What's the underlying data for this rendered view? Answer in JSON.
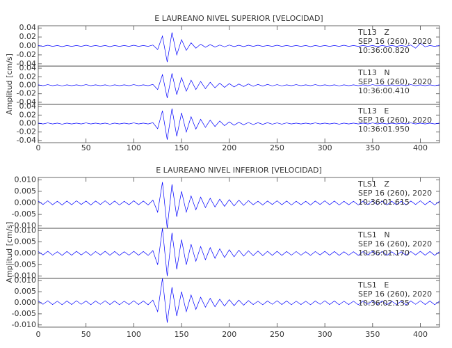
{
  "chart_data": [
    {
      "type": "line",
      "title": "E LAUREANO NIVEL SUPERIOR [VELOCIDAD]",
      "ylabel": "Amplitud [cm/s]",
      "xlim": [
        0,
        420
      ],
      "xticks": [
        0,
        50,
        100,
        150,
        200,
        250,
        300,
        350,
        400
      ],
      "x": [
        0,
        5,
        10,
        15,
        20,
        25,
        30,
        35,
        40,
        45,
        50,
        55,
        60,
        65,
        70,
        75,
        80,
        85,
        90,
        95,
        100,
        105,
        110,
        115,
        120,
        125,
        130,
        135,
        140,
        145,
        150,
        155,
        160,
        165,
        170,
        175,
        180,
        185,
        190,
        195,
        200,
        205,
        210,
        215,
        220,
        225,
        230,
        235,
        240,
        245,
        250,
        255,
        260,
        265,
        270,
        275,
        280,
        285,
        290,
        295,
        300,
        305,
        310,
        315,
        320,
        325,
        330,
        335,
        340,
        345,
        350,
        355,
        360,
        365,
        370,
        375,
        380,
        385,
        390,
        395,
        400,
        405,
        410,
        415,
        420
      ],
      "panels": [
        {
          "station": "TL13   Z",
          "date": "SEP 16 (260), 2020",
          "time": "10:36:00.820",
          "color": "#0000ff",
          "ylim": [
            -0.045,
            0.045
          ],
          "yticks": [
            {
              "value": 0.04,
              "label": "0.04"
            },
            {
              "value": 0.02,
              "label": "0.02"
            },
            {
              "value": 0,
              "label": "0.00"
            },
            {
              "value": -0.02,
              "label": "-0.02"
            },
            {
              "value": -0.04,
              "label": "-0.04"
            }
          ],
          "values": [
            0.001,
            -0.001,
            0.0015,
            -0.001,
            0.001,
            -0.0015,
            0.001,
            -0.001,
            0.001,
            -0.001,
            0.0015,
            -0.001,
            0.001,
            -0.001,
            0.001,
            -0.0015,
            0.001,
            -0.001,
            0.001,
            -0.001,
            0.0015,
            -0.001,
            0.001,
            -0.001,
            0.002,
            -0.008,
            0.022,
            -0.036,
            0.03,
            -0.02,
            0.014,
            -0.01,
            0.007,
            -0.005,
            0.004,
            -0.003,
            0.003,
            -0.0025,
            0.002,
            -0.002,
            0.002,
            -0.0015,
            0.0015,
            -0.0015,
            0.0015,
            -0.001,
            0.0015,
            -0.001,
            0.001,
            -0.001,
            0.0015,
            -0.001,
            0.001,
            -0.001,
            0.001,
            -0.001,
            0.001,
            -0.0015,
            0.001,
            -0.001,
            0.001,
            -0.001,
            0.001,
            -0.001,
            0.0015,
            -0.001,
            0.001,
            -0.001,
            0.001,
            -0.001,
            0.001,
            -0.0015,
            0.001,
            -0.001,
            0.001,
            -0.001,
            0.001,
            -0.001,
            0.002,
            -0.005,
            0.006,
            -0.002,
            0.001,
            -0.001,
            0.001
          ]
        },
        {
          "station": "TL13   N",
          "date": "SEP 16 (260), 2020",
          "time": "10:36:00.410",
          "color": "#0000ff",
          "ylim": [
            -0.045,
            0.045
          ],
          "yticks": [
            {
              "value": 0.04,
              "label": "0.04"
            },
            {
              "value": 0.02,
              "label": "0.02"
            },
            {
              "value": 0,
              "label": "0.00"
            },
            {
              "value": -0.02,
              "label": "-0.02"
            },
            {
              "value": -0.04,
              "label": "-0.04"
            }
          ],
          "values": [
            0.001,
            -0.001,
            0.0015,
            -0.001,
            0.001,
            -0.0015,
            0.001,
            -0.001,
            0.001,
            -0.001,
            0.0015,
            -0.001,
            0.001,
            -0.001,
            0.001,
            -0.0015,
            0.001,
            -0.001,
            0.001,
            -0.001,
            0.0015,
            -0.001,
            0.001,
            -0.001,
            0.002,
            -0.01,
            0.025,
            -0.03,
            0.028,
            -0.022,
            0.018,
            -0.014,
            0.012,
            -0.01,
            0.009,
            -0.008,
            0.007,
            -0.006,
            0.005,
            -0.005,
            0.004,
            -0.004,
            0.003,
            -0.003,
            0.003,
            -0.0025,
            0.002,
            -0.002,
            0.002,
            -0.0015,
            0.0015,
            -0.0015,
            0.001,
            -0.001,
            0.0015,
            -0.001,
            0.001,
            -0.001,
            0.0015,
            -0.001,
            0.001,
            -0.001,
            0.001,
            -0.0015,
            0.001,
            -0.001,
            0.001,
            -0.001,
            0.001,
            -0.001,
            0.0015,
            -0.001,
            0.001,
            -0.001,
            0.001,
            -0.001,
            0.001,
            -0.001,
            0.0015,
            -0.001,
            0.001,
            -0.001,
            0.001,
            -0.001,
            0.001
          ]
        },
        {
          "station": "TL13   E",
          "date": "SEP 16 (260), 2020",
          "time": "10:36:01.950",
          "color": "#0000ff",
          "ylim": [
            -0.045,
            0.045
          ],
          "yticks": [
            {
              "value": 0.04,
              "label": "0.04"
            },
            {
              "value": 0.02,
              "label": "0.02"
            },
            {
              "value": 0,
              "label": "0.00"
            },
            {
              "value": -0.02,
              "label": "-0.02"
            },
            {
              "value": -0.04,
              "label": "-0.04"
            }
          ],
          "values": [
            0.001,
            -0.001,
            0.0015,
            -0.001,
            0.001,
            -0.0015,
            0.001,
            -0.001,
            0.001,
            -0.001,
            0.0015,
            -0.001,
            0.001,
            -0.001,
            0.001,
            -0.0015,
            0.001,
            -0.001,
            0.001,
            -0.001,
            0.0015,
            -0.001,
            0.001,
            -0.001,
            0.002,
            -0.012,
            0.03,
            -0.038,
            0.035,
            -0.03,
            0.025,
            -0.02,
            0.016,
            -0.013,
            0.01,
            -0.009,
            0.008,
            -0.007,
            0.006,
            -0.005,
            0.004,
            -0.004,
            0.003,
            -0.003,
            0.0025,
            -0.0025,
            0.002,
            -0.002,
            0.002,
            -0.0015,
            0.0015,
            -0.0015,
            0.0015,
            -0.001,
            0.001,
            -0.001,
            0.001,
            -0.001,
            0.0015,
            -0.001,
            0.001,
            -0.001,
            0.001,
            -0.0015,
            0.001,
            -0.001,
            0.001,
            -0.001,
            0.001,
            -0.001,
            0.0015,
            -0.001,
            0.001,
            -0.001,
            0.001,
            -0.001,
            0.001,
            -0.001,
            0.0015,
            -0.001,
            0.001,
            -0.001,
            0.001,
            -0.001,
            0.001
          ]
        }
      ]
    },
    {
      "type": "line",
      "title": "E LAUREANO NIVEL INFERIOR [VELOCIDAD]",
      "ylabel": "Amplitud [cm/s]",
      "xlim": [
        0,
        420
      ],
      "xticks": [
        0,
        50,
        100,
        150,
        200,
        250,
        300,
        350,
        400
      ],
      "x": [
        0,
        5,
        10,
        15,
        20,
        25,
        30,
        35,
        40,
        45,
        50,
        55,
        60,
        65,
        70,
        75,
        80,
        85,
        90,
        95,
        100,
        105,
        110,
        115,
        120,
        125,
        130,
        135,
        140,
        145,
        150,
        155,
        160,
        165,
        170,
        175,
        180,
        185,
        190,
        195,
        200,
        205,
        210,
        215,
        220,
        225,
        230,
        235,
        240,
        245,
        250,
        255,
        260,
        265,
        270,
        275,
        280,
        285,
        290,
        295,
        300,
        305,
        310,
        315,
        320,
        325,
        330,
        335,
        340,
        345,
        350,
        355,
        360,
        365,
        370,
        375,
        380,
        385,
        390,
        395,
        400,
        405,
        410,
        415,
        420
      ],
      "panels": [
        {
          "station": "TLS1   Z",
          "date": "SEP 16 (260), 2020",
          "time": "10:36:01.615",
          "color": "#0000ff",
          "ylim": [
            -0.011,
            0.011
          ],
          "yticks": [
            {
              "value": 0.01,
              "label": "0.010"
            },
            {
              "value": 0.005,
              "label": "0.005"
            },
            {
              "value": 0,
              "label": "0.000"
            },
            {
              "value": -0.005,
              "label": "-0.005"
            },
            {
              "value": -0.01,
              "label": "-0.010"
            }
          ],
          "values": [
            0.0008,
            -0.0007,
            0.0009,
            -0.0008,
            0.0007,
            -0.0009,
            0.0008,
            -0.0008,
            0.0009,
            -0.0007,
            0.0008,
            -0.0009,
            0.0008,
            -0.0007,
            0.0009,
            -0.0008,
            0.0008,
            -0.0009,
            0.0007,
            -0.0008,
            0.0009,
            -0.0008,
            0.0008,
            -0.0009,
            0.0012,
            -0.004,
            0.009,
            -0.011,
            0.008,
            -0.006,
            0.005,
            -0.004,
            0.003,
            -0.003,
            0.0025,
            -0.002,
            0.002,
            -0.0018,
            0.0016,
            -0.0015,
            0.0014,
            -0.0013,
            0.0012,
            -0.0011,
            0.001,
            -0.0008,
            0.0007,
            -0.0009,
            0.0008,
            -0.0007,
            0.0009,
            -0.0008,
            0.0008,
            -0.0009,
            0.0007,
            -0.0008,
            0.0007,
            -0.0009,
            0.0008,
            -0.0007,
            0.0009,
            -0.0008,
            0.0008,
            -0.0009,
            0.0007,
            -0.0008,
            0.0007,
            -0.0009,
            0.0008,
            -0.0007,
            0.0009,
            -0.0008,
            0.0008,
            -0.0009,
            0.0007,
            -0.0008,
            0.0007,
            -0.0009,
            0.0008,
            -0.0007,
            0.0009,
            -0.0008,
            0.0008,
            -0.0009,
            0.0007
          ]
        },
        {
          "station": "TLS1   N",
          "date": "SEP 16 (260), 2020",
          "time": "10:36:01.170",
          "color": "#0000ff",
          "ylim": [
            -0.011,
            0.011
          ],
          "yticks": [
            {
              "value": 0.01,
              "label": "0.010"
            },
            {
              "value": 0.005,
              "label": "0.005"
            },
            {
              "value": 0,
              "label": "0.000"
            },
            {
              "value": -0.005,
              "label": "-0.005"
            },
            {
              "value": -0.01,
              "label": "-0.010"
            }
          ],
          "values": [
            0.0008,
            -0.0007,
            0.0009,
            -0.0008,
            0.0007,
            -0.0009,
            0.0008,
            -0.0008,
            0.0009,
            -0.0007,
            0.0008,
            -0.0009,
            0.0008,
            -0.0007,
            0.0009,
            -0.0008,
            0.0008,
            -0.0009,
            0.0007,
            -0.0008,
            0.0009,
            -0.0008,
            0.0008,
            -0.0009,
            0.0012,
            -0.005,
            0.011,
            -0.01,
            0.009,
            -0.007,
            0.006,
            -0.005,
            0.004,
            -0.0035,
            0.003,
            -0.0028,
            0.0025,
            -0.0022,
            0.002,
            -0.0018,
            0.0016,
            -0.0015,
            0.0014,
            -0.0012,
            0.0011,
            -0.001,
            0.001,
            -0.001,
            0.0009,
            -0.0009,
            0.0009,
            -0.0009,
            0.0008,
            -0.0008,
            0.0008,
            -0.0008,
            0.0007,
            -0.0009,
            0.0008,
            -0.0007,
            0.0009,
            -0.0008,
            0.0008,
            -0.0009,
            0.0007,
            -0.0008,
            0.0007,
            -0.0009,
            0.0008,
            -0.0007,
            0.0009,
            -0.0008,
            0.0008,
            -0.0009,
            0.0007,
            -0.0008,
            0.0007,
            -0.0009,
            0.0008,
            -0.0007,
            0.0009,
            -0.0008,
            0.0008,
            -0.0009,
            0.0007
          ]
        },
        {
          "station": "TLS1   E",
          "date": "SEP 16 (260), 2020",
          "time": "10:36:02.135",
          "color": "#0000ff",
          "ylim": [
            -0.011,
            0.011
          ],
          "yticks": [
            {
              "value": 0.01,
              "label": "0.010"
            },
            {
              "value": 0.005,
              "label": "0.005"
            },
            {
              "value": 0,
              "label": "0.000"
            },
            {
              "value": -0.005,
              "label": "-0.005"
            },
            {
              "value": -0.01,
              "label": "-0.010"
            }
          ],
          "values": [
            0.0008,
            -0.0007,
            0.0009,
            -0.0008,
            0.0007,
            -0.0009,
            0.0008,
            -0.0008,
            0.0009,
            -0.0007,
            0.0008,
            -0.0009,
            0.0008,
            -0.0007,
            0.0009,
            -0.0008,
            0.0008,
            -0.0009,
            0.0007,
            -0.0008,
            0.0009,
            -0.0008,
            0.0008,
            -0.0009,
            0.0012,
            -0.004,
            0.011,
            -0.009,
            0.007,
            -0.006,
            0.005,
            -0.004,
            0.0035,
            -0.003,
            0.0025,
            -0.002,
            0.002,
            -0.0018,
            0.0016,
            -0.0015,
            0.0014,
            -0.0013,
            0.0012,
            -0.0011,
            0.001,
            -0.0008,
            0.0007,
            -0.0009,
            0.0008,
            -0.0007,
            0.0009,
            -0.0008,
            0.0008,
            -0.0009,
            0.0007,
            -0.0008,
            0.0007,
            -0.0009,
            0.0008,
            -0.0007,
            0.0009,
            -0.0008,
            0.0008,
            -0.0009,
            0.0007,
            -0.0008,
            0.0007,
            -0.0009,
            0.0008,
            -0.0007,
            0.0009,
            -0.0008,
            0.0008,
            -0.0009,
            0.0007,
            -0.0008,
            0.0007,
            -0.0009,
            0.0008,
            -0.0007,
            0.0009,
            -0.0008,
            0.0008,
            -0.0009,
            0.0007
          ]
        }
      ]
    }
  ]
}
